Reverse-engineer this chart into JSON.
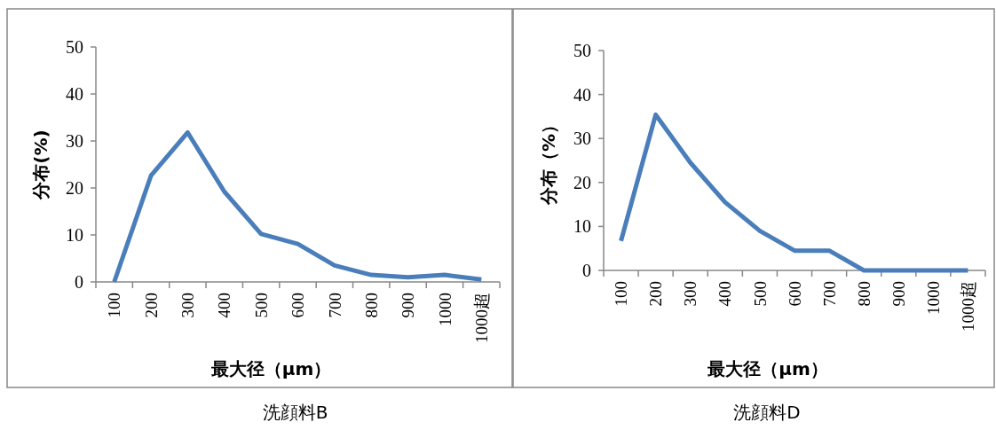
{
  "chart_data": [
    {
      "type": "line",
      "title": "洗顔料B",
      "xlabel": "最大径（μm）",
      "ylabel": "分布(%)",
      "categories": [
        "100",
        "200",
        "300",
        "400",
        "500",
        "600",
        "700",
        "800",
        "900",
        "1000",
        "1000超"
      ],
      "series": [
        {
          "color": "#4a7ebb",
          "values": [
            0,
            22.6,
            31.8,
            19.2,
            10.2,
            8.1,
            3.5,
            1.5,
            1.0,
            1.5,
            0.5
          ]
        }
      ],
      "ylim": [
        0,
        50
      ],
      "yticks": [
        0,
        10,
        20,
        30,
        40,
        50
      ],
      "grid": false,
      "marker": "none",
      "line_style": "solid"
    },
    {
      "type": "line",
      "title": "洗顔料D",
      "xlabel": "最大径（μm）",
      "ylabel": "分布（%）",
      "categories": [
        "100",
        "200",
        "300",
        "400",
        "500",
        "600",
        "700",
        "800",
        "900",
        "1000",
        "1000超"
      ],
      "series": [
        {
          "color": "#4a7ebb",
          "values": [
            6.7,
            35.4,
            24.5,
            15.5,
            9.0,
            4.5,
            4.5,
            0,
            0,
            0,
            0
          ]
        }
      ],
      "ylim": [
        0,
        50
      ],
      "yticks": [
        0,
        10,
        20,
        30,
        40,
        50
      ],
      "grid": false,
      "marker": "none",
      "line_style": "solid"
    }
  ]
}
